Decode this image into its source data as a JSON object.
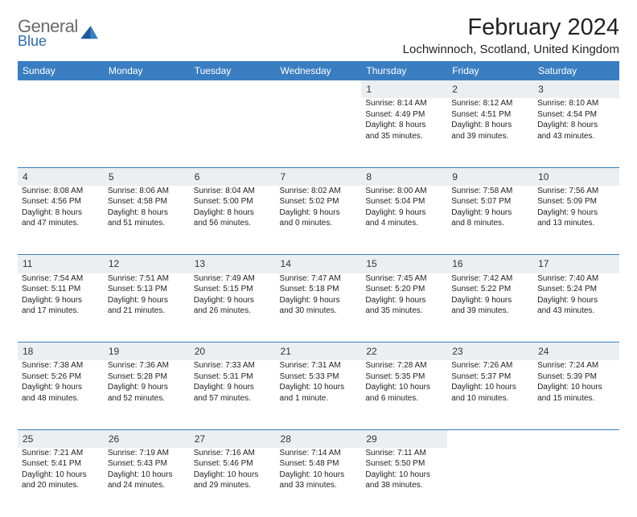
{
  "logo": {
    "word1": "General",
    "word2": "Blue",
    "icon_color": "#1d5a99"
  },
  "title": "February 2024",
  "location": "Lochwinnoch, Scotland, United Kingdom",
  "colors": {
    "header_bg": "#3a7ec1",
    "header_text": "#ffffff",
    "daynum_bg": "#eceff1",
    "cell_border": "#3a7ec1",
    "text": "#222222",
    "logo_gray": "#6a6a6a",
    "logo_blue": "#2f6da8"
  },
  "day_headers": [
    "Sunday",
    "Monday",
    "Tuesday",
    "Wednesday",
    "Thursday",
    "Friday",
    "Saturday"
  ],
  "weeks": [
    [
      null,
      null,
      null,
      null,
      {
        "n": "1",
        "sr": "Sunrise: 8:14 AM",
        "ss": "Sunset: 4:49 PM",
        "d1": "Daylight: 8 hours",
        "d2": "and 35 minutes."
      },
      {
        "n": "2",
        "sr": "Sunrise: 8:12 AM",
        "ss": "Sunset: 4:51 PM",
        "d1": "Daylight: 8 hours",
        "d2": "and 39 minutes."
      },
      {
        "n": "3",
        "sr": "Sunrise: 8:10 AM",
        "ss": "Sunset: 4:54 PM",
        "d1": "Daylight: 8 hours",
        "d2": "and 43 minutes."
      }
    ],
    [
      {
        "n": "4",
        "sr": "Sunrise: 8:08 AM",
        "ss": "Sunset: 4:56 PM",
        "d1": "Daylight: 8 hours",
        "d2": "and 47 minutes."
      },
      {
        "n": "5",
        "sr": "Sunrise: 8:06 AM",
        "ss": "Sunset: 4:58 PM",
        "d1": "Daylight: 8 hours",
        "d2": "and 51 minutes."
      },
      {
        "n": "6",
        "sr": "Sunrise: 8:04 AM",
        "ss": "Sunset: 5:00 PM",
        "d1": "Daylight: 8 hours",
        "d2": "and 56 minutes."
      },
      {
        "n": "7",
        "sr": "Sunrise: 8:02 AM",
        "ss": "Sunset: 5:02 PM",
        "d1": "Daylight: 9 hours",
        "d2": "and 0 minutes."
      },
      {
        "n": "8",
        "sr": "Sunrise: 8:00 AM",
        "ss": "Sunset: 5:04 PM",
        "d1": "Daylight: 9 hours",
        "d2": "and 4 minutes."
      },
      {
        "n": "9",
        "sr": "Sunrise: 7:58 AM",
        "ss": "Sunset: 5:07 PM",
        "d1": "Daylight: 9 hours",
        "d2": "and 8 minutes."
      },
      {
        "n": "10",
        "sr": "Sunrise: 7:56 AM",
        "ss": "Sunset: 5:09 PM",
        "d1": "Daylight: 9 hours",
        "d2": "and 13 minutes."
      }
    ],
    [
      {
        "n": "11",
        "sr": "Sunrise: 7:54 AM",
        "ss": "Sunset: 5:11 PM",
        "d1": "Daylight: 9 hours",
        "d2": "and 17 minutes."
      },
      {
        "n": "12",
        "sr": "Sunrise: 7:51 AM",
        "ss": "Sunset: 5:13 PM",
        "d1": "Daylight: 9 hours",
        "d2": "and 21 minutes."
      },
      {
        "n": "13",
        "sr": "Sunrise: 7:49 AM",
        "ss": "Sunset: 5:15 PM",
        "d1": "Daylight: 9 hours",
        "d2": "and 26 minutes."
      },
      {
        "n": "14",
        "sr": "Sunrise: 7:47 AM",
        "ss": "Sunset: 5:18 PM",
        "d1": "Daylight: 9 hours",
        "d2": "and 30 minutes."
      },
      {
        "n": "15",
        "sr": "Sunrise: 7:45 AM",
        "ss": "Sunset: 5:20 PM",
        "d1": "Daylight: 9 hours",
        "d2": "and 35 minutes."
      },
      {
        "n": "16",
        "sr": "Sunrise: 7:42 AM",
        "ss": "Sunset: 5:22 PM",
        "d1": "Daylight: 9 hours",
        "d2": "and 39 minutes."
      },
      {
        "n": "17",
        "sr": "Sunrise: 7:40 AM",
        "ss": "Sunset: 5:24 PM",
        "d1": "Daylight: 9 hours",
        "d2": "and 43 minutes."
      }
    ],
    [
      {
        "n": "18",
        "sr": "Sunrise: 7:38 AM",
        "ss": "Sunset: 5:26 PM",
        "d1": "Daylight: 9 hours",
        "d2": "and 48 minutes."
      },
      {
        "n": "19",
        "sr": "Sunrise: 7:36 AM",
        "ss": "Sunset: 5:28 PM",
        "d1": "Daylight: 9 hours",
        "d2": "and 52 minutes."
      },
      {
        "n": "20",
        "sr": "Sunrise: 7:33 AM",
        "ss": "Sunset: 5:31 PM",
        "d1": "Daylight: 9 hours",
        "d2": "and 57 minutes."
      },
      {
        "n": "21",
        "sr": "Sunrise: 7:31 AM",
        "ss": "Sunset: 5:33 PM",
        "d1": "Daylight: 10 hours",
        "d2": "and 1 minute."
      },
      {
        "n": "22",
        "sr": "Sunrise: 7:28 AM",
        "ss": "Sunset: 5:35 PM",
        "d1": "Daylight: 10 hours",
        "d2": "and 6 minutes."
      },
      {
        "n": "23",
        "sr": "Sunrise: 7:26 AM",
        "ss": "Sunset: 5:37 PM",
        "d1": "Daylight: 10 hours",
        "d2": "and 10 minutes."
      },
      {
        "n": "24",
        "sr": "Sunrise: 7:24 AM",
        "ss": "Sunset: 5:39 PM",
        "d1": "Daylight: 10 hours",
        "d2": "and 15 minutes."
      }
    ],
    [
      {
        "n": "25",
        "sr": "Sunrise: 7:21 AM",
        "ss": "Sunset: 5:41 PM",
        "d1": "Daylight: 10 hours",
        "d2": "and 20 minutes."
      },
      {
        "n": "26",
        "sr": "Sunrise: 7:19 AM",
        "ss": "Sunset: 5:43 PM",
        "d1": "Daylight: 10 hours",
        "d2": "and 24 minutes."
      },
      {
        "n": "27",
        "sr": "Sunrise: 7:16 AM",
        "ss": "Sunset: 5:46 PM",
        "d1": "Daylight: 10 hours",
        "d2": "and 29 minutes."
      },
      {
        "n": "28",
        "sr": "Sunrise: 7:14 AM",
        "ss": "Sunset: 5:48 PM",
        "d1": "Daylight: 10 hours",
        "d2": "and 33 minutes."
      },
      {
        "n": "29",
        "sr": "Sunrise: 7:11 AM",
        "ss": "Sunset: 5:50 PM",
        "d1": "Daylight: 10 hours",
        "d2": "and 38 minutes."
      },
      null,
      null
    ]
  ]
}
